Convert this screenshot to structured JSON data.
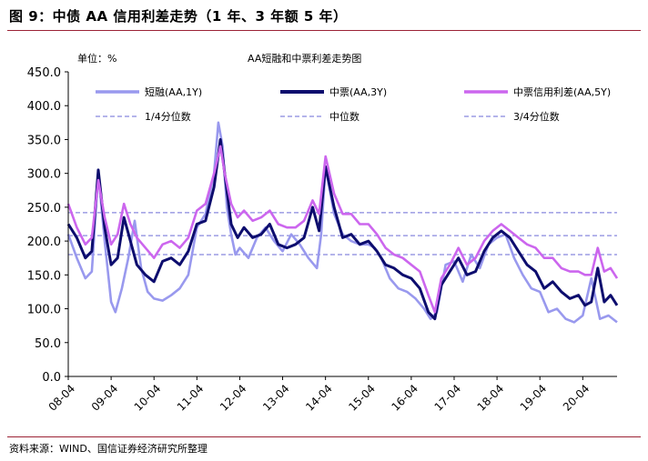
{
  "figure_title": "图 9：中债 AA 信用利差走势（1 年、3 年额 5 年）",
  "source_note": "资料来源：WIND、国信证券经济研究所整理",
  "chart_data": {
    "type": "line",
    "title": "AA短融和中票利差走势图",
    "unit_label": "单位：%",
    "xlabel": "",
    "ylabel": "",
    "ylim": [
      0,
      450
    ],
    "y_ticks": [
      0,
      50,
      100,
      150,
      200,
      250,
      300,
      350,
      400,
      450
    ],
    "y_tick_labels": [
      "0.0",
      "50.0",
      "100.0",
      "150.0",
      "200.0",
      "250.0",
      "300.0",
      "350.0",
      "400.0",
      "450.0"
    ],
    "x_tick_labels": [
      "08-04",
      "09-04",
      "10-04",
      "11-04",
      "12-04",
      "13-04",
      "14-04",
      "15-04",
      "16-04",
      "17-04",
      "18-04",
      "19-04",
      "20-04"
    ],
    "x_range_years": [
      2008.0,
      2020.8
    ],
    "series": [
      {
        "name": "短融(AA,1Y)",
        "color": "#9999ee",
        "x": [
          2008.0,
          2008.2,
          2008.4,
          2008.55,
          2008.7,
          2008.85,
          2009.0,
          2009.1,
          2009.25,
          2009.4,
          2009.55,
          2009.7,
          2009.85,
          2010.0,
          2010.2,
          2010.4,
          2010.6,
          2010.8,
          2011.0,
          2011.2,
          2011.4,
          2011.5,
          2011.6,
          2011.7,
          2011.8,
          2011.9,
          2012.0,
          2012.2,
          2012.4,
          2012.6,
          2012.8,
          2013.0,
          2013.2,
          2013.4,
          2013.6,
          2013.8,
          2013.9,
          2014.0,
          2014.2,
          2014.4,
          2014.6,
          2014.8,
          2015.0,
          2015.15,
          2015.3,
          2015.5,
          2015.7,
          2015.9,
          2016.1,
          2016.3,
          2016.45,
          2016.6,
          2016.8,
          2017.0,
          2017.2,
          2017.4,
          2017.6,
          2017.8,
          2018.0,
          2018.2,
          2018.4,
          2018.6,
          2018.8,
          2019.0,
          2019.2,
          2019.4,
          2019.6,
          2019.8,
          2020.0,
          2020.2,
          2020.4,
          2020.6,
          2020.8
        ],
        "y": [
          210,
          175,
          145,
          155,
          300,
          200,
          110,
          95,
          130,
          175,
          230,
          160,
          125,
          115,
          112,
          120,
          130,
          150,
          220,
          240,
          300,
          375,
          340,
          250,
          210,
          180,
          190,
          175,
          205,
          220,
          200,
          185,
          210,
          195,
          175,
          160,
          210,
          310,
          240,
          210,
          200,
          195,
          195,
          190,
          175,
          145,
          130,
          125,
          115,
          100,
          85,
          95,
          165,
          170,
          140,
          180,
          160,
          195,
          205,
          210,
          175,
          150,
          130,
          125,
          95,
          100,
          85,
          80,
          90,
          145,
          85,
          90,
          80
        ]
      },
      {
        "name": "中票(AA,3Y)",
        "color": "#0d0d6e",
        "x": [
          2008.0,
          2008.2,
          2008.4,
          2008.55,
          2008.7,
          2008.85,
          2009.0,
          2009.15,
          2009.3,
          2009.45,
          2009.6,
          2009.8,
          2010.0,
          2010.2,
          2010.4,
          2010.6,
          2010.8,
          2011.0,
          2011.2,
          2011.4,
          2011.55,
          2011.65,
          2011.8,
          2011.95,
          2012.1,
          2012.3,
          2012.5,
          2012.7,
          2012.9,
          2013.1,
          2013.3,
          2013.5,
          2013.7,
          2013.85,
          2014.0,
          2014.2,
          2014.4,
          2014.6,
          2014.8,
          2015.0,
          2015.2,
          2015.4,
          2015.6,
          2015.8,
          2016.0,
          2016.2,
          2016.4,
          2016.55,
          2016.7,
          2016.9,
          2017.1,
          2017.3,
          2017.5,
          2017.7,
          2017.9,
          2018.1,
          2018.3,
          2018.5,
          2018.7,
          2018.9,
          2019.1,
          2019.3,
          2019.5,
          2019.7,
          2019.9,
          2020.05,
          2020.2,
          2020.35,
          2020.5,
          2020.65,
          2020.8
        ],
        "y": [
          225,
          205,
          175,
          185,
          305,
          220,
          165,
          175,
          235,
          200,
          165,
          150,
          140,
          170,
          175,
          165,
          185,
          225,
          230,
          280,
          350,
          300,
          225,
          205,
          220,
          205,
          210,
          225,
          195,
          190,
          195,
          205,
          250,
          215,
          310,
          250,
          205,
          210,
          195,
          200,
          185,
          165,
          160,
          150,
          145,
          130,
          95,
          85,
          135,
          155,
          175,
          150,
          155,
          185,
          205,
          215,
          205,
          185,
          165,
          155,
          130,
          140,
          125,
          115,
          120,
          105,
          110,
          160,
          110,
          120,
          105
        ]
      },
      {
        "name": "中票信用利差(AA,5Y)",
        "color": "#cc66ee",
        "x": [
          2008.0,
          2008.2,
          2008.4,
          2008.55,
          2008.7,
          2008.85,
          2009.0,
          2009.15,
          2009.3,
          2009.45,
          2009.6,
          2009.8,
          2010.0,
          2010.2,
          2010.4,
          2010.6,
          2010.8,
          2011.0,
          2011.2,
          2011.4,
          2011.55,
          2011.65,
          2011.8,
          2011.95,
          2012.1,
          2012.3,
          2012.5,
          2012.7,
          2012.9,
          2013.1,
          2013.3,
          2013.5,
          2013.7,
          2013.85,
          2014.0,
          2014.2,
          2014.4,
          2014.6,
          2014.8,
          2015.0,
          2015.2,
          2015.4,
          2015.6,
          2015.8,
          2016.0,
          2016.2,
          2016.4,
          2016.55,
          2016.7,
          2016.9,
          2017.1,
          2017.3,
          2017.5,
          2017.7,
          2017.9,
          2018.1,
          2018.3,
          2018.5,
          2018.7,
          2018.9,
          2019.1,
          2019.3,
          2019.5,
          2019.7,
          2019.9,
          2020.05,
          2020.2,
          2020.35,
          2020.5,
          2020.65,
          2020.8
        ],
        "y": [
          255,
          220,
          195,
          205,
          290,
          235,
          195,
          210,
          255,
          225,
          205,
          190,
          175,
          195,
          200,
          190,
          205,
          245,
          255,
          300,
          340,
          300,
          255,
          235,
          245,
          230,
          235,
          245,
          225,
          220,
          220,
          230,
          260,
          240,
          325,
          270,
          240,
          240,
          225,
          225,
          210,
          190,
          180,
          175,
          165,
          155,
          120,
          95,
          145,
          165,
          190,
          165,
          175,
          200,
          215,
          225,
          215,
          205,
          195,
          190,
          175,
          175,
          160,
          155,
          155,
          150,
          150,
          190,
          155,
          160,
          145
        ]
      },
      {
        "name": "1/4分位数",
        "color": "#8888dd",
        "dashed": true,
        "constant": 180
      },
      {
        "name": "中位数",
        "color": "#8888dd",
        "dashed": true,
        "constant": 208
      },
      {
        "name": "3/4分位数",
        "color": "#8888dd",
        "dashed": true,
        "constant": 242
      }
    ]
  }
}
